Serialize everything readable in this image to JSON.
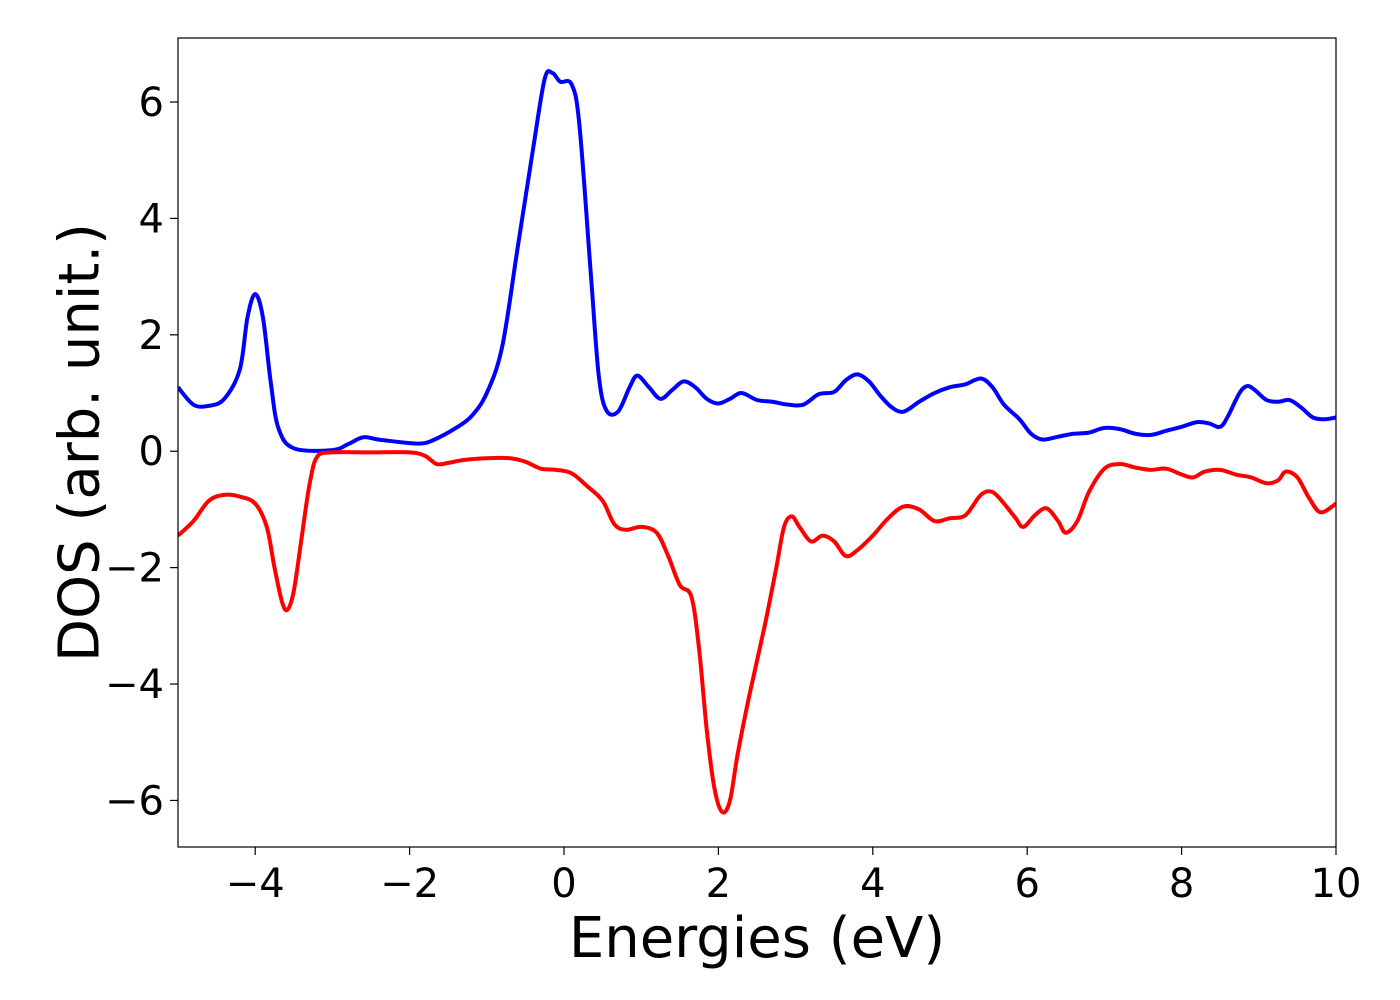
{
  "chart_data": {
    "type": "line",
    "xlabel": "Energies (eV)",
    "ylabel": "DOS (arb. unit.)",
    "xlim": [
      -5,
      10
    ],
    "ylim": [
      -6.8,
      7.1
    ],
    "xticks": [
      -4,
      -2,
      0,
      2,
      4,
      6,
      8,
      10
    ],
    "xtick_labels": [
      "−4",
      "−2",
      "0",
      "2",
      "4",
      "6",
      "8",
      "10"
    ],
    "yticks": [
      -6,
      -4,
      -2,
      0,
      2,
      4,
      6
    ],
    "ytick_labels": [
      "−6",
      "−4",
      "−2",
      "0",
      "2",
      "4",
      "6"
    ],
    "grid": false,
    "series": [
      {
        "color": "#0000ff",
        "points": [
          [
            -5.0,
            1.1
          ],
          [
            -4.8,
            0.8
          ],
          [
            -4.6,
            0.78
          ],
          [
            -4.4,
            0.9
          ],
          [
            -4.2,
            1.4
          ],
          [
            -4.1,
            2.3
          ],
          [
            -4.0,
            2.7
          ],
          [
            -3.9,
            2.3
          ],
          [
            -3.8,
            1.2
          ],
          [
            -3.7,
            0.4
          ],
          [
            -3.5,
            0.05
          ],
          [
            -3.0,
            0.02
          ],
          [
            -2.8,
            0.12
          ],
          [
            -2.6,
            0.24
          ],
          [
            -2.4,
            0.2
          ],
          [
            -2.0,
            0.14
          ],
          [
            -1.8,
            0.14
          ],
          [
            -1.6,
            0.25
          ],
          [
            -1.4,
            0.4
          ],
          [
            -1.2,
            0.6
          ],
          [
            -1.0,
            1.0
          ],
          [
            -0.8,
            1.8
          ],
          [
            -0.6,
            3.5
          ],
          [
            -0.4,
            5.2
          ],
          [
            -0.25,
            6.4
          ],
          [
            -0.15,
            6.5
          ],
          [
            -0.05,
            6.35
          ],
          [
            0.1,
            6.3
          ],
          [
            0.2,
            5.6
          ],
          [
            0.35,
            3.0
          ],
          [
            0.45,
            1.3
          ],
          [
            0.55,
            0.7
          ],
          [
            0.7,
            0.68
          ],
          [
            0.85,
            1.1
          ],
          [
            0.95,
            1.3
          ],
          [
            1.1,
            1.1
          ],
          [
            1.25,
            0.9
          ],
          [
            1.4,
            1.05
          ],
          [
            1.55,
            1.2
          ],
          [
            1.7,
            1.1
          ],
          [
            1.85,
            0.9
          ],
          [
            2.0,
            0.82
          ],
          [
            2.15,
            0.9
          ],
          [
            2.3,
            1.0
          ],
          [
            2.5,
            0.88
          ],
          [
            2.7,
            0.85
          ],
          [
            2.9,
            0.8
          ],
          [
            3.1,
            0.8
          ],
          [
            3.3,
            0.98
          ],
          [
            3.5,
            1.02
          ],
          [
            3.65,
            1.22
          ],
          [
            3.8,
            1.32
          ],
          [
            3.95,
            1.2
          ],
          [
            4.1,
            0.95
          ],
          [
            4.25,
            0.75
          ],
          [
            4.4,
            0.68
          ],
          [
            4.6,
            0.85
          ],
          [
            4.8,
            1.0
          ],
          [
            5.0,
            1.1
          ],
          [
            5.2,
            1.15
          ],
          [
            5.4,
            1.25
          ],
          [
            5.55,
            1.1
          ],
          [
            5.7,
            0.8
          ],
          [
            5.9,
            0.55
          ],
          [
            6.05,
            0.3
          ],
          [
            6.2,
            0.2
          ],
          [
            6.4,
            0.25
          ],
          [
            6.6,
            0.3
          ],
          [
            6.8,
            0.32
          ],
          [
            7.0,
            0.4
          ],
          [
            7.2,
            0.38
          ],
          [
            7.4,
            0.3
          ],
          [
            7.6,
            0.28
          ],
          [
            7.8,
            0.35
          ],
          [
            8.0,
            0.42
          ],
          [
            8.2,
            0.5
          ],
          [
            8.35,
            0.48
          ],
          [
            8.5,
            0.42
          ],
          [
            8.6,
            0.6
          ],
          [
            8.75,
            1.0
          ],
          [
            8.85,
            1.12
          ],
          [
            8.95,
            1.05
          ],
          [
            9.1,
            0.88
          ],
          [
            9.25,
            0.85
          ],
          [
            9.4,
            0.88
          ],
          [
            9.55,
            0.75
          ],
          [
            9.7,
            0.58
          ],
          [
            9.85,
            0.55
          ],
          [
            10.0,
            0.58
          ]
        ]
      },
      {
        "color": "#ff0000",
        "points": [
          [
            -5.0,
            -1.45
          ],
          [
            -4.8,
            -1.2
          ],
          [
            -4.6,
            -0.85
          ],
          [
            -4.4,
            -0.75
          ],
          [
            -4.2,
            -0.78
          ],
          [
            -4.0,
            -0.9
          ],
          [
            -3.85,
            -1.3
          ],
          [
            -3.75,
            -2.0
          ],
          [
            -3.65,
            -2.6
          ],
          [
            -3.58,
            -2.72
          ],
          [
            -3.5,
            -2.4
          ],
          [
            -3.4,
            -1.5
          ],
          [
            -3.3,
            -0.6
          ],
          [
            -3.2,
            -0.1
          ],
          [
            -3.0,
            -0.02
          ],
          [
            -2.5,
            -0.02
          ],
          [
            -2.0,
            -0.02
          ],
          [
            -1.8,
            -0.08
          ],
          [
            -1.65,
            -0.22
          ],
          [
            -1.5,
            -0.2
          ],
          [
            -1.3,
            -0.15
          ],
          [
            -1.0,
            -0.12
          ],
          [
            -0.7,
            -0.12
          ],
          [
            -0.5,
            -0.18
          ],
          [
            -0.3,
            -0.3
          ],
          [
            -0.1,
            -0.32
          ],
          [
            0.1,
            -0.38
          ],
          [
            0.3,
            -0.6
          ],
          [
            0.5,
            -0.85
          ],
          [
            0.65,
            -1.25
          ],
          [
            0.8,
            -1.35
          ],
          [
            1.0,
            -1.3
          ],
          [
            1.2,
            -1.4
          ],
          [
            1.35,
            -1.8
          ],
          [
            1.5,
            -2.3
          ],
          [
            1.65,
            -2.5
          ],
          [
            1.75,
            -3.4
          ],
          [
            1.85,
            -4.8
          ],
          [
            1.95,
            -5.8
          ],
          [
            2.05,
            -6.2
          ],
          [
            2.15,
            -6.0
          ],
          [
            2.25,
            -5.2
          ],
          [
            2.4,
            -4.2
          ],
          [
            2.6,
            -3.0
          ],
          [
            2.75,
            -2.0
          ],
          [
            2.85,
            -1.3
          ],
          [
            2.95,
            -1.12
          ],
          [
            3.05,
            -1.3
          ],
          [
            3.2,
            -1.55
          ],
          [
            3.35,
            -1.45
          ],
          [
            3.5,
            -1.55
          ],
          [
            3.65,
            -1.8
          ],
          [
            3.8,
            -1.7
          ],
          [
            4.0,
            -1.45
          ],
          [
            4.2,
            -1.15
          ],
          [
            4.4,
            -0.95
          ],
          [
            4.6,
            -1.0
          ],
          [
            4.8,
            -1.2
          ],
          [
            5.0,
            -1.15
          ],
          [
            5.2,
            -1.1
          ],
          [
            5.4,
            -0.75
          ],
          [
            5.55,
            -0.7
          ],
          [
            5.7,
            -0.9
          ],
          [
            5.85,
            -1.15
          ],
          [
            5.95,
            -1.3
          ],
          [
            6.1,
            -1.1
          ],
          [
            6.25,
            -0.98
          ],
          [
            6.4,
            -1.2
          ],
          [
            6.5,
            -1.4
          ],
          [
            6.65,
            -1.2
          ],
          [
            6.8,
            -0.7
          ],
          [
            7.0,
            -0.3
          ],
          [
            7.2,
            -0.22
          ],
          [
            7.4,
            -0.28
          ],
          [
            7.6,
            -0.32
          ],
          [
            7.8,
            -0.3
          ],
          [
            8.0,
            -0.4
          ],
          [
            8.15,
            -0.45
          ],
          [
            8.3,
            -0.35
          ],
          [
            8.5,
            -0.32
          ],
          [
            8.7,
            -0.4
          ],
          [
            8.9,
            -0.45
          ],
          [
            9.1,
            -0.55
          ],
          [
            9.25,
            -0.5
          ],
          [
            9.35,
            -0.35
          ],
          [
            9.5,
            -0.45
          ],
          [
            9.65,
            -0.8
          ],
          [
            9.8,
            -1.05
          ],
          [
            10.0,
            -0.9
          ]
        ]
      }
    ]
  }
}
